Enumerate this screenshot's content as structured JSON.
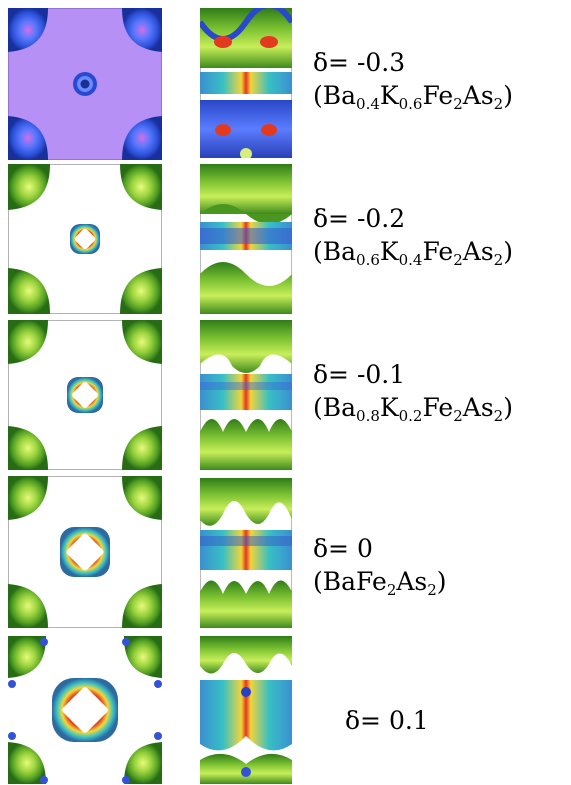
{
  "rows": [
    {
      "delta": "δ= -0.3",
      "compound": [
        {
          "t": "(Ba"
        },
        {
          "s": "0.4"
        },
        {
          "t": "K"
        },
        {
          "s": "0.6"
        },
        {
          "t": "Fe"
        },
        {
          "s": "2"
        },
        {
          "t": "As"
        },
        {
          "s": "2"
        },
        {
          "t": ")"
        }
      ]
    },
    {
      "delta": "δ= -0.2",
      "compound": [
        {
          "t": "(Ba"
        },
        {
          "s": "0.6"
        },
        {
          "t": "K"
        },
        {
          "s": "0.4"
        },
        {
          "t": "Fe"
        },
        {
          "s": "2"
        },
        {
          "t": "As"
        },
        {
          "s": "2"
        },
        {
          "t": ")"
        }
      ]
    },
    {
      "delta": "δ= -0.1",
      "compound": [
        {
          "t": "(Ba"
        },
        {
          "s": "0.8"
        },
        {
          "t": "K"
        },
        {
          "s": "0.2"
        },
        {
          "t": "Fe"
        },
        {
          "s": "2"
        },
        {
          "t": "As"
        },
        {
          "s": "2"
        },
        {
          "t": ")"
        }
      ]
    },
    {
      "delta": "δ= 0",
      "compound": [
        {
          "t": "(BaFe"
        },
        {
          "s": "2"
        },
        {
          "t": "As"
        },
        {
          "s": "2"
        },
        {
          "t": ")"
        }
      ]
    },
    {
      "delta": "δ= 0.1",
      "compound": []
    }
  ],
  "colors": {
    "green_dark": "#2e7d1a",
    "green": "#5aa828",
    "green_light": "#c4ec58",
    "blue": "#2c55d8",
    "purple_face": "#b48ef2",
    "cyan": "#3fc4c9",
    "red": "#e02a1c",
    "yellow": "#f3e23a"
  }
}
